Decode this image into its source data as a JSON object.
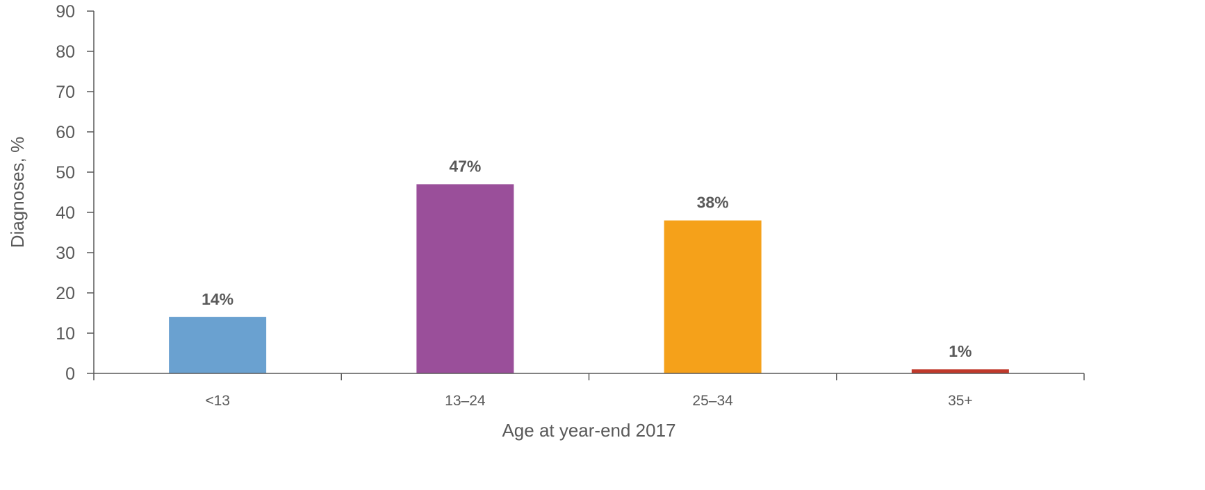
{
  "chart_data": {
    "type": "bar",
    "categories": [
      "<13",
      "13–24",
      "25–34",
      "35+"
    ],
    "values": [
      14,
      47,
      38,
      1
    ],
    "data_labels": [
      "14%",
      "47%",
      "38%",
      "1%"
    ],
    "colors": [
      "#6aa1d0",
      "#9a4f9a",
      "#f5a11a",
      "#c0392b"
    ],
    "title": "",
    "xlabel": "Age at year-end 2017",
    "ylabel": "Diagnoses, %",
    "ylim": [
      0,
      90
    ],
    "yticks": [
      0,
      10,
      20,
      30,
      40,
      50,
      60,
      70,
      80,
      90
    ],
    "grid": false,
    "legend": "none"
  }
}
